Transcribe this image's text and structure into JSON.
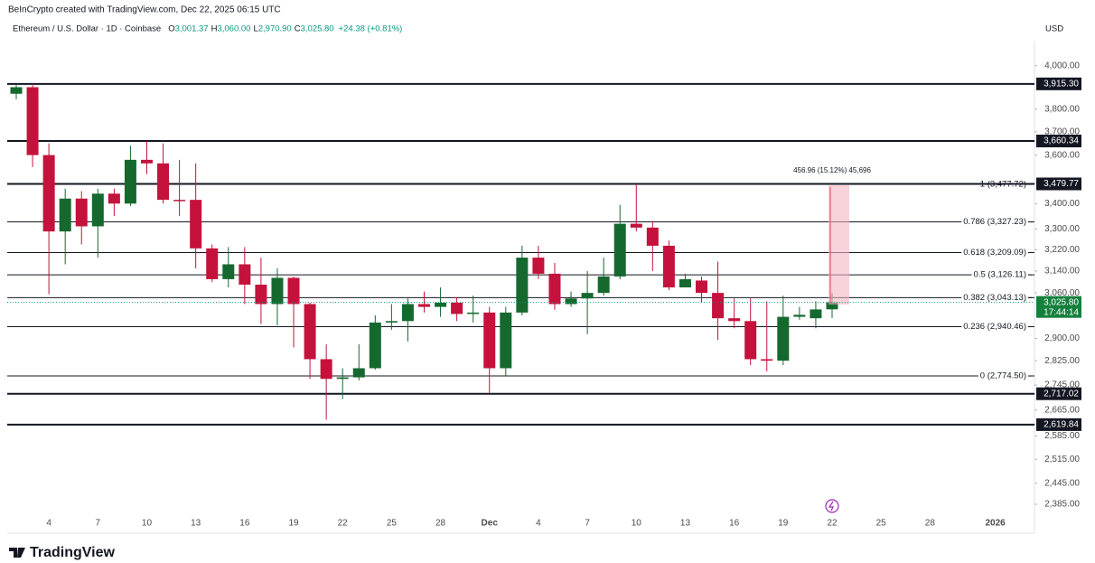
{
  "chart_data": {
    "type": "candlestick",
    "credit": "BeInCrypto created with TradingView.com, Dec 22, 2025 06:15 UTC",
    "symbol": "Ethereum / U.S. Dollar · 1D · Coinbase",
    "ohlc_legend": [
      {
        "key": "O",
        "value": "3,001.37"
      },
      {
        "key": "H",
        "value": "3,060.00"
      },
      {
        "key": "L",
        "value": "2,970.90"
      },
      {
        "key": "C",
        "value": "3,025.80"
      }
    ],
    "change": "+24.38 (+0.81%)",
    "currency": "USD",
    "brand": "TradingView",
    "log_scale": true,
    "up_color": "#15692f",
    "down_color": "#c4123c",
    "categories": [
      null,
      null,
      "4",
      null,
      null,
      "7",
      null,
      null,
      "10",
      null,
      null,
      "13",
      null,
      null,
      "16",
      null,
      null,
      "19",
      null,
      null,
      "22",
      null,
      null,
      "25",
      null,
      null,
      "28",
      null,
      null,
      "Dec",
      null,
      null,
      "4",
      null,
      null,
      "7",
      null,
      null,
      "10",
      null,
      null,
      "13",
      null,
      null,
      "16",
      null,
      null,
      "19",
      null,
      null,
      "22",
      null,
      null,
      "25",
      null,
      null,
      "28",
      null,
      null,
      null,
      "2026"
    ],
    "open": [
      3870,
      3900,
      3600,
      3290,
      3420,
      3310,
      3440,
      3400,
      3580,
      3565,
      3415,
      3415,
      3225,
      3110,
      3165,
      3090,
      3020,
      3115,
      3020,
      2830,
      2765,
      2770,
      2800,
      2955,
      2960,
      3020,
      3010,
      3025,
      2985,
      2990,
      2800,
      2990,
      3190,
      3130,
      3020,
      3040,
      3060,
      3120,
      3320,
      3305,
      3235,
      3080,
      3105,
      3060,
      2970,
      2960,
      2830,
      2825,
      2975,
      2970,
      3001.37,
      null,
      null,
      null,
      null,
      null,
      null,
      null,
      null,
      null,
      null
    ],
    "high": [
      3910,
      3915,
      3650,
      3460,
      3450,
      3460,
      3460,
      3640,
      3660,
      3650,
      3580,
      3565,
      3240,
      3230,
      3230,
      3190,
      3150,
      3120,
      3025,
      2880,
      2800,
      2880,
      2980,
      3020,
      3040,
      3065,
      3080,
      3045,
      3050,
      3010,
      3010,
      3235,
      3235,
      3170,
      3065,
      3140,
      3190,
      3395,
      3475,
      3330,
      3255,
      3130,
      3120,
      3175,
      3040,
      3040,
      3030,
      3050,
      3010,
      3030,
      3060,
      null,
      null,
      null,
      null,
      null,
      null,
      null,
      null,
      null,
      null
    ],
    "low": [
      3845,
      3550,
      3055,
      3165,
      3240,
      3190,
      3350,
      3390,
      3520,
      3400,
      3350,
      3150,
      3100,
      3080,
      3020,
      2950,
      2945,
      2870,
      2765,
      2635,
      2700,
      2760,
      2795,
      2930,
      2890,
      2990,
      2975,
      2960,
      2955,
      2720,
      2775,
      2980,
      3110,
      3000,
      3010,
      2915,
      3050,
      3110,
      3290,
      3140,
      3070,
      3080,
      3025,
      2895,
      2935,
      2810,
      2790,
      2810,
      2965,
      2935,
      2970.9,
      null,
      null,
      null,
      null,
      null,
      null,
      null,
      null,
      null,
      null
    ],
    "close": [
      3900,
      3600,
      3290,
      3420,
      3310,
      3440,
      3400,
      3580,
      3565,
      3415,
      3410,
      3225,
      3110,
      3165,
      3090,
      3020,
      3115,
      3020,
      2830,
      2765,
      2770,
      2800,
      2955,
      2960,
      3020,
      3010,
      3025,
      2985,
      2990,
      2800,
      2990,
      3190,
      3130,
      3020,
      3040,
      3060,
      3120,
      3320,
      3305,
      3235,
      3080,
      3110,
      3060,
      2970,
      2960,
      2830,
      2825,
      2975,
      2982,
      3001,
      3025.8,
      null,
      null,
      null,
      null,
      null,
      null,
      null,
      null,
      null,
      null
    ],
    "ylim": [
      2310,
      4120
    ],
    "yticks": [
      {
        "value": 4000,
        "label": "4,000.00"
      },
      {
        "value": 3800,
        "label": "3,800.00"
      },
      {
        "value": 3700,
        "label": "3,700.00"
      },
      {
        "value": 3600,
        "label": "3,600.00"
      },
      {
        "value": 3400,
        "label": "3,400.00"
      },
      {
        "value": 3300,
        "label": "3,300.00"
      },
      {
        "value": 3220,
        "label": "3,220.00"
      },
      {
        "value": 3140,
        "label": "3,140.00"
      },
      {
        "value": 3060,
        "label": "3,060.00"
      },
      {
        "value": 2900,
        "label": "2,900.00"
      },
      {
        "value": 2825,
        "label": "2,825.00"
      },
      {
        "value": 2745,
        "label": "2,745.00"
      },
      {
        "value": 2665,
        "label": "2,665.00"
      },
      {
        "value": 2585,
        "label": "2,585.00"
      },
      {
        "value": 2515,
        "label": "2,515.00"
      },
      {
        "value": 2445,
        "label": "2,445.00"
      },
      {
        "value": 2385,
        "label": "2,385.00"
      }
    ],
    "levels": [
      {
        "value": 3915.3,
        "label": "3,915.30"
      },
      {
        "value": 3660.34,
        "label": "3,660.34"
      },
      {
        "value": 3479.77,
        "label": "3,479.77"
      },
      {
        "value": 2717.02,
        "label": "2,717.02"
      },
      {
        "value": 2619.84,
        "label": "2,619.84"
      }
    ],
    "fib_levels": [
      {
        "value": 3477.72,
        "label": "1 (3,477.72)"
      },
      {
        "value": 3327.23,
        "label": "0.786 (3,327.23)"
      },
      {
        "value": 3209.09,
        "label": "0.618 (3,209.09)"
      },
      {
        "value": 3126.11,
        "label": "0.5 (3,126.11)"
      },
      {
        "value": 3043.13,
        "label": "0.382 (3,043.13)"
      },
      {
        "value": 2940.46,
        "label": "0.236 (2,940.46)"
      },
      {
        "value": 2774.5,
        "label": "0 (2,774.50)"
      }
    ],
    "current_price": {
      "value": 3025.8,
      "label": "3,025.80",
      "countdown": "17:44:14"
    },
    "measure_label": "456.96 (15.12%) 45,696"
  }
}
